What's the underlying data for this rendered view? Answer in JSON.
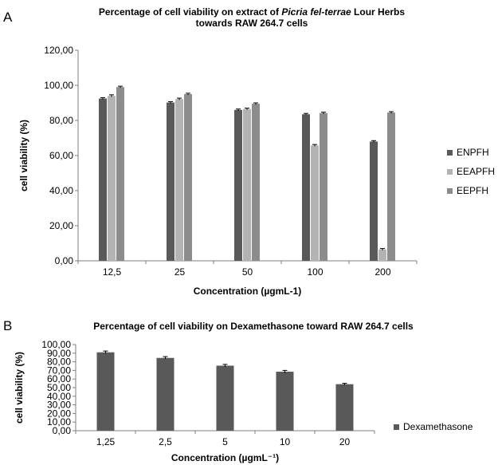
{
  "panels": {
    "a": {
      "label": "A",
      "title_line1_pre": "Percentage of cell viability on extract of ",
      "title_line1_italic": "Picria fel-terrae",
      "title_line1_post": " Lour Herbs",
      "title_line2": "towards RAW 264.7 cells"
    },
    "b": {
      "label": "B",
      "title": "Percentage of cell viability on Dexamethasone toward RAW 264.7 cells"
    }
  },
  "chart_data": [
    {
      "type": "bar",
      "title": "Percentage of cell viability on extract of Picria fel-terrae Lour Herbs towards RAW 264.7 cells",
      "xlabel": "Concentration (µgmL-1)",
      "ylabel": "cell viability (%)",
      "ylim": [
        0,
        120
      ],
      "yticks": [
        "0,00",
        "20,00",
        "40,00",
        "60,00",
        "80,00",
        "100,00",
        "120,00"
      ],
      "categories": [
        "12,5",
        "25",
        "50",
        "100",
        "200"
      ],
      "series": [
        {
          "name": "ENPFH",
          "color": "#595959",
          "values": [
            92.5,
            90.2,
            86.0,
            83.5,
            68.0
          ],
          "errors": [
            0.5,
            0.5,
            0.5,
            0.5,
            0.5
          ]
        },
        {
          "name": "EEAPFH",
          "color": "#b3b3b3",
          "values": [
            94.0,
            92.2,
            86.5,
            65.8,
            6.5
          ],
          "errors": [
            0.6,
            0.5,
            0.5,
            0.5,
            0.5
          ]
        },
        {
          "name": "EEPFH",
          "color": "#8c8c8c",
          "values": [
            99.0,
            95.0,
            89.5,
            84.2,
            84.5
          ],
          "errors": [
            0.5,
            0.5,
            0.5,
            0.5,
            0.5
          ]
        }
      ],
      "legend": "right",
      "grid": false
    },
    {
      "type": "bar",
      "title": "Percentage of cell viability on Dexamethasone toward RAW 264.7 cells",
      "xlabel": "Concentration (µgmL⁻¹)",
      "ylabel": "cell viability (%)",
      "ylim": [
        0,
        100
      ],
      "yticks": [
        "0,00",
        "10,00",
        "20,00",
        "30,00",
        "40,00",
        "50,00",
        "60,00",
        "70,00",
        "80,00",
        "90,00",
        "100,00"
      ],
      "categories": [
        "1,25",
        "2,5",
        "5",
        "10",
        "20"
      ],
      "series": [
        {
          "name": "Dexamethasone",
          "color": "#595959",
          "values": [
            91.0,
            84.5,
            75.5,
            68.5,
            54.0
          ],
          "errors": [
            1.5,
            1.5,
            1.5,
            1.5,
            1.0
          ]
        }
      ],
      "legend": "right",
      "grid": false
    }
  ]
}
